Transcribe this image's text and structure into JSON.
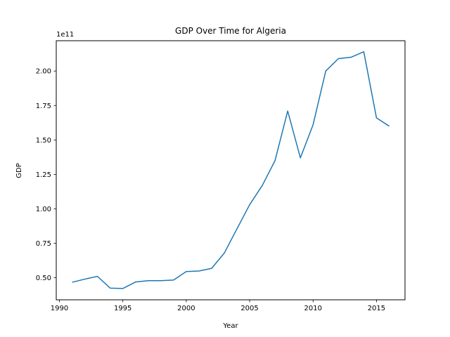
{
  "chart_data": {
    "type": "line",
    "title": "GDP Over Time for Algeria",
    "xlabel": "Year",
    "ylabel": "GDP",
    "y_offset_label": "1e11",
    "xlim": [
      1989.75,
      2017.25
    ],
    "ylim": [
      34000000000.0,
      222000000000.0
    ],
    "x_ticks": [
      1990,
      1995,
      2000,
      2005,
      2010,
      2015
    ],
    "x_tick_labels": [
      "1990",
      "1995",
      "2000",
      "2005",
      "2010",
      "2015"
    ],
    "y_ticks": [
      50000000000.0,
      75000000000.0,
      100000000000.0,
      125000000000.0,
      150000000000.0,
      175000000000.0,
      200000000000.0
    ],
    "y_tick_labels": [
      "0.50",
      "0.75",
      "1.00",
      "1.25",
      "1.50",
      "1.75",
      "2.00"
    ],
    "grid": false,
    "series": [
      {
        "color": "#1f77b4",
        "x": [
          1991,
          1992,
          1993,
          1994,
          1995,
          1996,
          1997,
          1998,
          1999,
          2000,
          2001,
          2002,
          2003,
          2004,
          2005,
          2006,
          2007,
          2008,
          2009,
          2010,
          2011,
          2012,
          2013,
          2014,
          2015,
          2016
        ],
        "y": [
          46700000000.0,
          49000000000.0,
          51000000000.0,
          42500000000.0,
          42200000000.0,
          46900000000.0,
          47900000000.0,
          47900000000.0,
          48300000000.0,
          54500000000.0,
          54900000000.0,
          56800000000.0,
          67900000000.0,
          85500000000.0,
          103000000000.0,
          117000000000.0,
          135000000000.0,
          171000000000.0,
          137000000000.0,
          161000000000.0,
          200000000000.0,
          209000000000.0,
          210000000000.0,
          214000000000.0,
          166000000000.0,
          160000000000.0
        ]
      }
    ]
  }
}
